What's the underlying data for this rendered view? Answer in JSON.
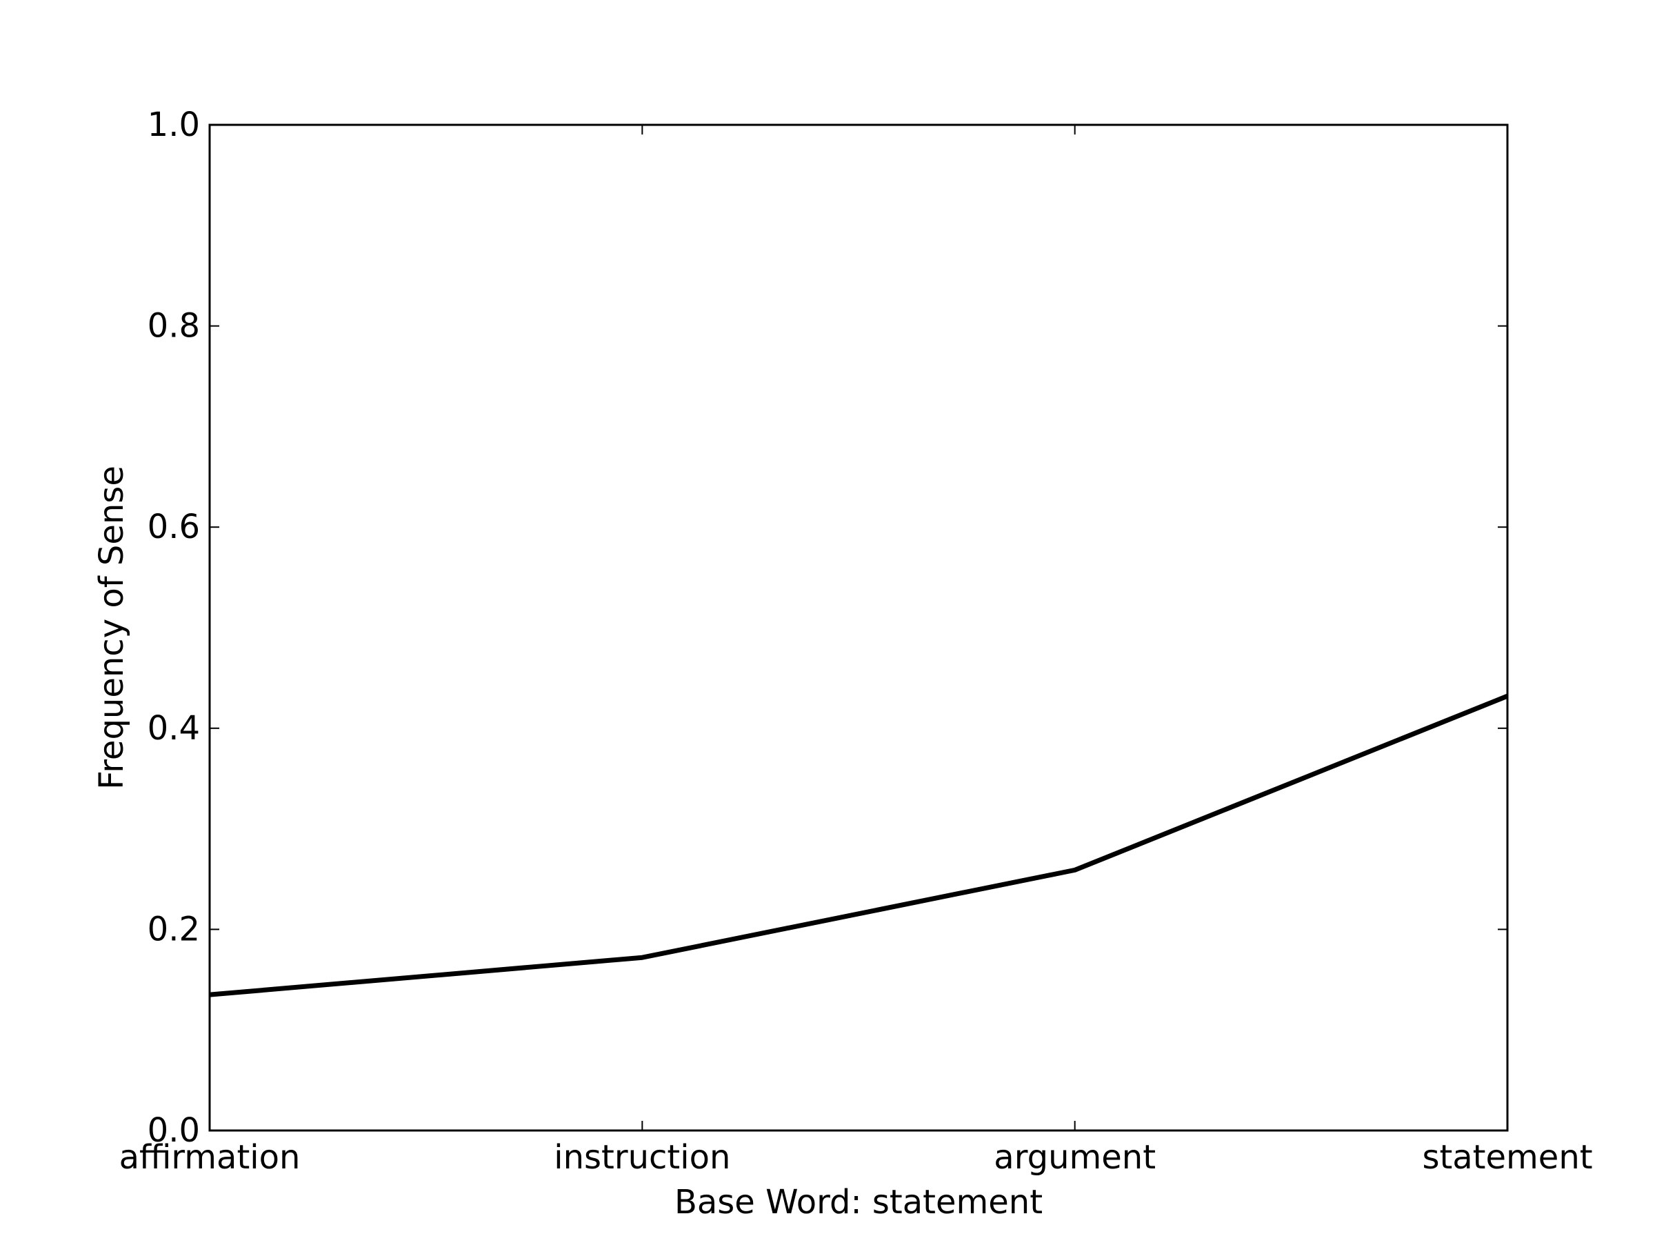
{
  "chart_data": {
    "type": "line",
    "categories": [
      "affirmation",
      "instruction",
      "argument",
      "statement"
    ],
    "series": [
      {
        "values": [
          0.135,
          0.172,
          0.259,
          0.432
        ]
      }
    ],
    "xlabel": "Base Word: statement",
    "ylabel": "Frequency of Sense",
    "ylim": [
      0.0,
      1.0
    ],
    "yticks": [
      "0.0",
      "0.2",
      "0.4",
      "0.6",
      "0.8",
      "1.0"
    ],
    "grid": false,
    "line_color": "#000000"
  }
}
